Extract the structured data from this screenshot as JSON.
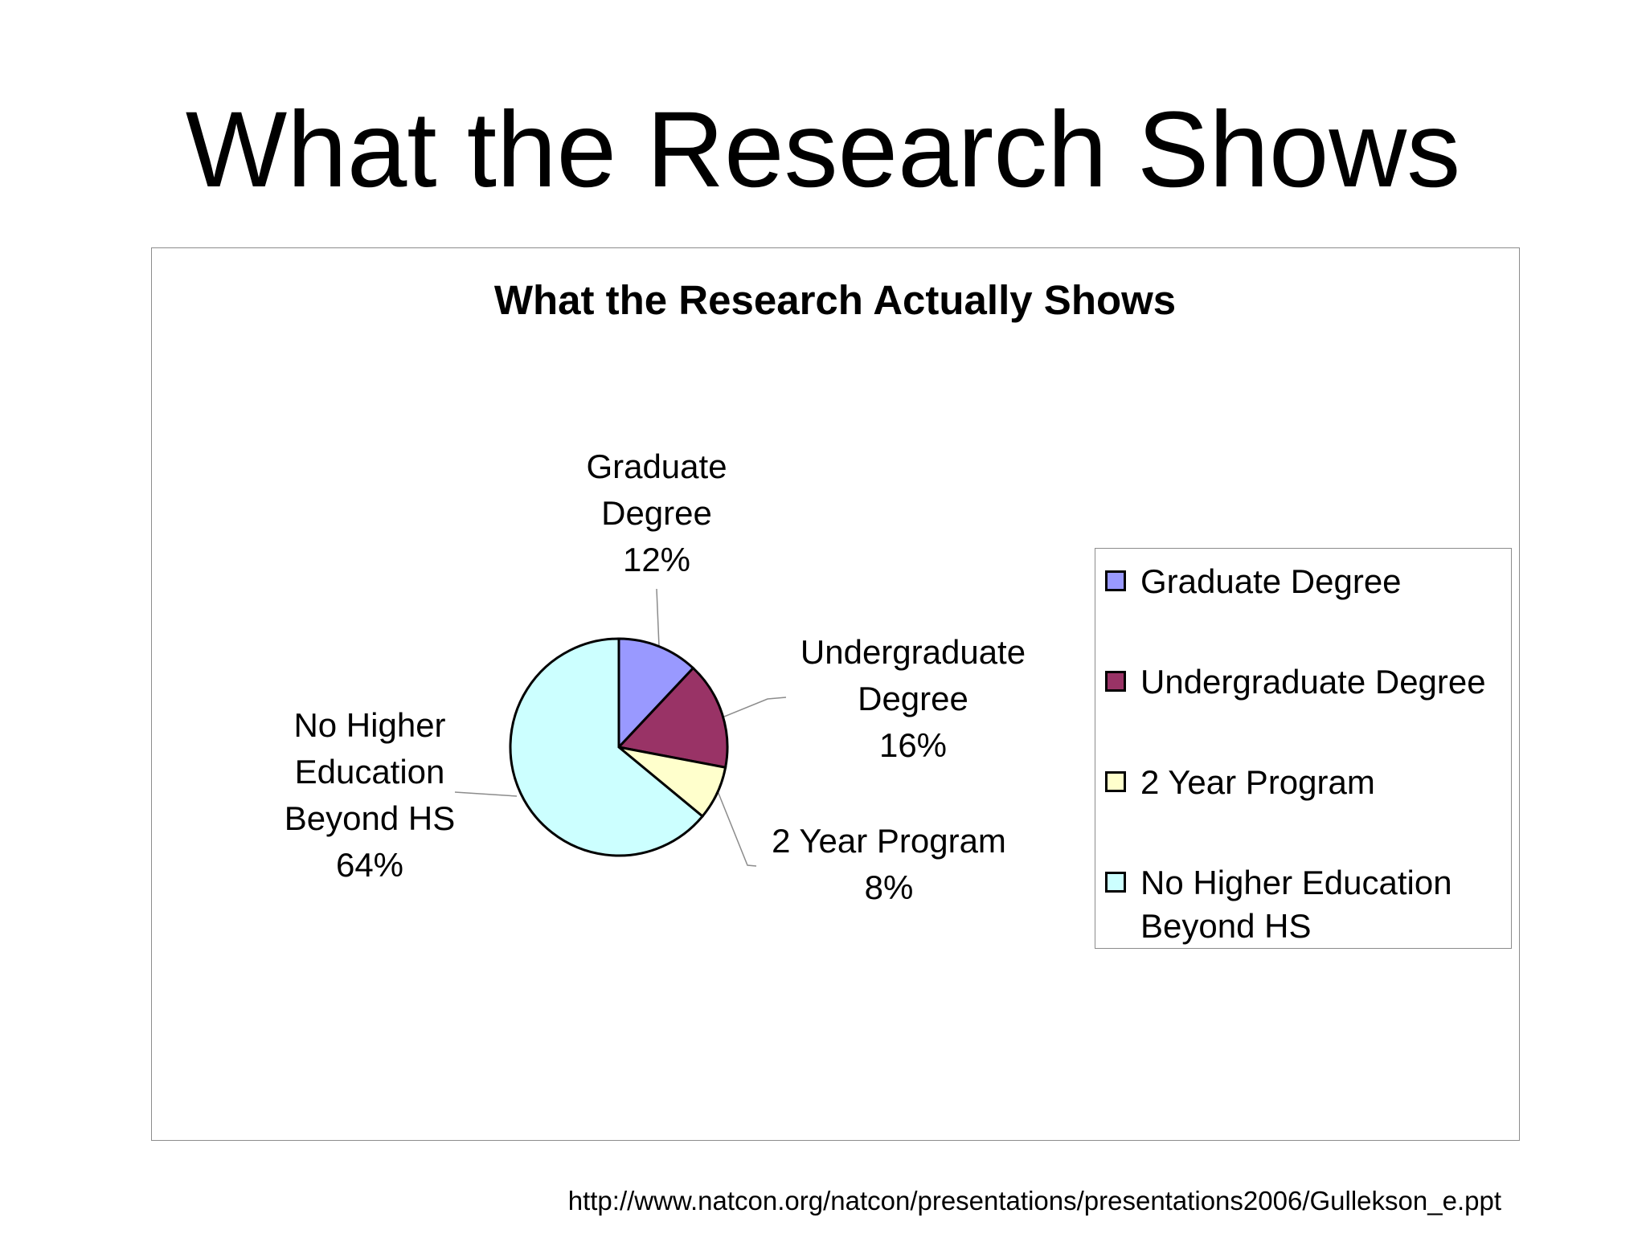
{
  "slide": {
    "title": "What the Research Shows",
    "source_url": "http://www.natcon.org/natcon/presentations/presentations2006/Gullekson_e.ppt"
  },
  "chart_data": {
    "type": "pie",
    "title": "What the Research Actually Shows",
    "categories": [
      "Graduate Degree",
      "Undergraduate Degree",
      "2 Year Program",
      "No Higher Education Beyond HS"
    ],
    "values": [
      12,
      16,
      8,
      64
    ],
    "value_labels": [
      "12%",
      "16%",
      "8%",
      "64%"
    ],
    "data_label_lines": [
      [
        "Graduate",
        "Degree",
        "12%"
      ],
      [
        "Undergraduate",
        "Degree",
        "16%"
      ],
      [
        "2 Year Program",
        "8%"
      ],
      [
        "No Higher",
        "Education",
        "Beyond HS",
        "64%"
      ]
    ],
    "colors": [
      "#9999ff",
      "#993366",
      "#ffffcc",
      "#ccffff"
    ],
    "legend": {
      "position": "right",
      "items": [
        "Graduate Degree",
        "Undergraduate Degree",
        "2 Year Program",
        "No Higher Education Beyond HS"
      ]
    }
  }
}
